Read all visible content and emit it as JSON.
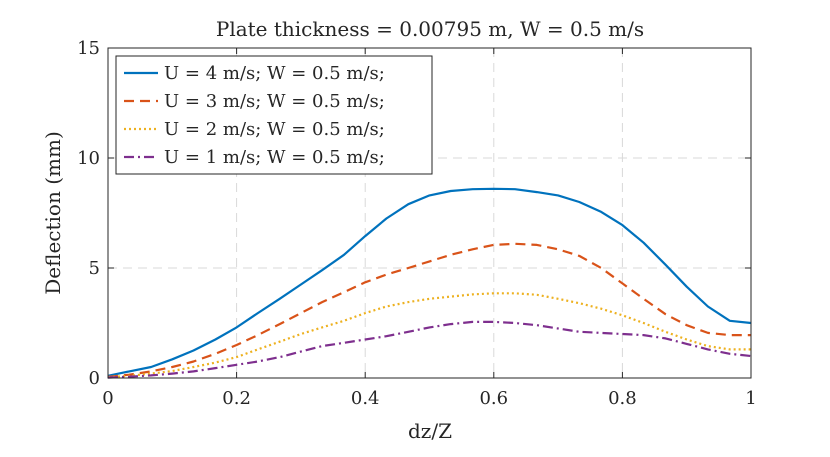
{
  "chart_data": {
    "type": "line",
    "title": "Plate thickness = 0.00795 m, W = 0.5 m/s",
    "xlabel": "dz/Z",
    "ylabel": "Deflection (mm)",
    "xlim": [
      0,
      1
    ],
    "ylim": [
      0,
      15
    ],
    "xticks": [
      0,
      0.2,
      0.4,
      0.6,
      0.8,
      1
    ],
    "xtick_labels": [
      "0",
      "0.2",
      "0.4",
      "0.6",
      "0.8",
      "1"
    ],
    "yticks": [
      0,
      5,
      10,
      15
    ],
    "ytick_labels": [
      "0",
      "5",
      "10",
      "15"
    ],
    "grid": true,
    "legend_position": "top-left",
    "series": [
      {
        "name": "U = 4 m/s; W = 0.5 m/s;",
        "color": "#0072BD",
        "style": "solid",
        "x": [
          0,
          0.033,
          0.067,
          0.1,
          0.133,
          0.167,
          0.2,
          0.233,
          0.267,
          0.3,
          0.333,
          0.367,
          0.4,
          0.433,
          0.467,
          0.5,
          0.533,
          0.567,
          0.6,
          0.633,
          0.667,
          0.7,
          0.733,
          0.767,
          0.8,
          0.833,
          0.867,
          0.9,
          0.933,
          0.967,
          1
        ],
        "y": [
          0.1,
          0.3,
          0.5,
          0.85,
          1.25,
          1.75,
          2.3,
          2.95,
          3.6,
          4.25,
          4.9,
          5.6,
          6.45,
          7.25,
          7.9,
          8.3,
          8.5,
          8.58,
          8.6,
          8.58,
          8.45,
          8.3,
          8.0,
          7.55,
          6.95,
          6.15,
          5.15,
          4.15,
          3.25,
          2.6,
          2.5
        ]
      },
      {
        "name": "U = 3 m/s; W = 0.5 m/s;",
        "color": "#D95319",
        "style": "dashed",
        "x": [
          0,
          0.033,
          0.067,
          0.1,
          0.133,
          0.167,
          0.2,
          0.233,
          0.267,
          0.3,
          0.333,
          0.367,
          0.4,
          0.433,
          0.467,
          0.5,
          0.533,
          0.567,
          0.6,
          0.633,
          0.667,
          0.7,
          0.733,
          0.767,
          0.8,
          0.833,
          0.867,
          0.9,
          0.933,
          0.967,
          1
        ],
        "y": [
          0.05,
          0.15,
          0.3,
          0.5,
          0.75,
          1.1,
          1.5,
          1.95,
          2.45,
          2.95,
          3.45,
          3.9,
          4.35,
          4.7,
          5.0,
          5.3,
          5.6,
          5.85,
          6.05,
          6.1,
          6.05,
          5.85,
          5.55,
          5.0,
          4.3,
          3.6,
          2.9,
          2.4,
          2.05,
          1.95,
          1.95
        ]
      },
      {
        "name": "U = 2 m/s; W = 0.5 m/s;",
        "color": "#EDB120",
        "style": "dotted",
        "x": [
          0,
          0.033,
          0.067,
          0.1,
          0.133,
          0.167,
          0.2,
          0.233,
          0.267,
          0.3,
          0.333,
          0.367,
          0.4,
          0.433,
          0.467,
          0.5,
          0.533,
          0.567,
          0.6,
          0.633,
          0.667,
          0.7,
          0.733,
          0.767,
          0.8,
          0.833,
          0.867,
          0.9,
          0.933,
          0.967,
          1
        ],
        "y": [
          0.03,
          0.1,
          0.2,
          0.32,
          0.5,
          0.7,
          0.95,
          1.3,
          1.65,
          2.0,
          2.3,
          2.6,
          2.95,
          3.25,
          3.45,
          3.6,
          3.7,
          3.8,
          3.85,
          3.85,
          3.78,
          3.6,
          3.4,
          3.15,
          2.85,
          2.5,
          2.1,
          1.75,
          1.45,
          1.3,
          1.3
        ]
      },
      {
        "name": "U = 1 m/s; W = 0.5 m/s;",
        "color": "#7E2F8E",
        "style": "dashdot",
        "x": [
          0,
          0.033,
          0.067,
          0.1,
          0.133,
          0.167,
          0.2,
          0.233,
          0.267,
          0.3,
          0.333,
          0.367,
          0.4,
          0.433,
          0.467,
          0.5,
          0.533,
          0.567,
          0.6,
          0.633,
          0.667,
          0.7,
          0.733,
          0.767,
          0.8,
          0.833,
          0.867,
          0.9,
          0.933,
          0.967,
          1
        ],
        "y": [
          0.02,
          0.06,
          0.12,
          0.2,
          0.3,
          0.45,
          0.6,
          0.75,
          0.95,
          1.2,
          1.45,
          1.6,
          1.75,
          1.9,
          2.1,
          2.3,
          2.45,
          2.55,
          2.55,
          2.5,
          2.4,
          2.25,
          2.1,
          2.05,
          2.0,
          1.95,
          1.8,
          1.55,
          1.3,
          1.1,
          1.0
        ]
      }
    ]
  }
}
